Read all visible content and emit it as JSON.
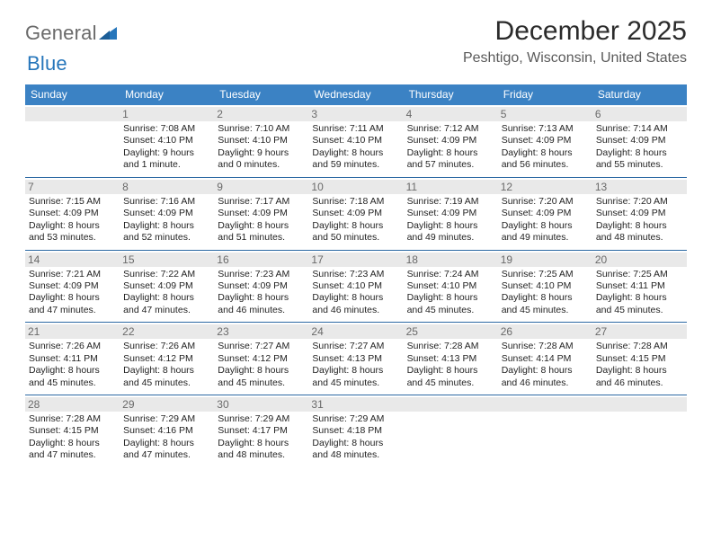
{
  "brand": {
    "general": "General",
    "blue": "Blue"
  },
  "title": "December 2025",
  "location": "Peshtigo, Wisconsin, United States",
  "colors": {
    "header_bg": "#3b82c4",
    "header_text": "#ffffff",
    "row_border": "#2c69a3",
    "daynum_bg": "#e9e9e9",
    "daynum_text": "#6a6a6a",
    "body_text": "#232323",
    "logo_gray": "#6a6a6a",
    "logo_blue": "#2676bb"
  },
  "dow": [
    "Sunday",
    "Monday",
    "Tuesday",
    "Wednesday",
    "Thursday",
    "Friday",
    "Saturday"
  ],
  "grid_cols": 7,
  "start_offset": 1,
  "days": [
    {
      "n": 1,
      "sunrise": "7:08 AM",
      "sunset": "4:10 PM",
      "daylight": "9 hours and 1 minute."
    },
    {
      "n": 2,
      "sunrise": "7:10 AM",
      "sunset": "4:10 PM",
      "daylight": "9 hours and 0 minutes."
    },
    {
      "n": 3,
      "sunrise": "7:11 AM",
      "sunset": "4:10 PM",
      "daylight": "8 hours and 59 minutes."
    },
    {
      "n": 4,
      "sunrise": "7:12 AM",
      "sunset": "4:09 PM",
      "daylight": "8 hours and 57 minutes."
    },
    {
      "n": 5,
      "sunrise": "7:13 AM",
      "sunset": "4:09 PM",
      "daylight": "8 hours and 56 minutes."
    },
    {
      "n": 6,
      "sunrise": "7:14 AM",
      "sunset": "4:09 PM",
      "daylight": "8 hours and 55 minutes."
    },
    {
      "n": 7,
      "sunrise": "7:15 AM",
      "sunset": "4:09 PM",
      "daylight": "8 hours and 53 minutes."
    },
    {
      "n": 8,
      "sunrise": "7:16 AM",
      "sunset": "4:09 PM",
      "daylight": "8 hours and 52 minutes."
    },
    {
      "n": 9,
      "sunrise": "7:17 AM",
      "sunset": "4:09 PM",
      "daylight": "8 hours and 51 minutes."
    },
    {
      "n": 10,
      "sunrise": "7:18 AM",
      "sunset": "4:09 PM",
      "daylight": "8 hours and 50 minutes."
    },
    {
      "n": 11,
      "sunrise": "7:19 AM",
      "sunset": "4:09 PM",
      "daylight": "8 hours and 49 minutes."
    },
    {
      "n": 12,
      "sunrise": "7:20 AM",
      "sunset": "4:09 PM",
      "daylight": "8 hours and 49 minutes."
    },
    {
      "n": 13,
      "sunrise": "7:20 AM",
      "sunset": "4:09 PM",
      "daylight": "8 hours and 48 minutes."
    },
    {
      "n": 14,
      "sunrise": "7:21 AM",
      "sunset": "4:09 PM",
      "daylight": "8 hours and 47 minutes."
    },
    {
      "n": 15,
      "sunrise": "7:22 AM",
      "sunset": "4:09 PM",
      "daylight": "8 hours and 47 minutes."
    },
    {
      "n": 16,
      "sunrise": "7:23 AM",
      "sunset": "4:09 PM",
      "daylight": "8 hours and 46 minutes."
    },
    {
      "n": 17,
      "sunrise": "7:23 AM",
      "sunset": "4:10 PM",
      "daylight": "8 hours and 46 minutes."
    },
    {
      "n": 18,
      "sunrise": "7:24 AM",
      "sunset": "4:10 PM",
      "daylight": "8 hours and 45 minutes."
    },
    {
      "n": 19,
      "sunrise": "7:25 AM",
      "sunset": "4:10 PM",
      "daylight": "8 hours and 45 minutes."
    },
    {
      "n": 20,
      "sunrise": "7:25 AM",
      "sunset": "4:11 PM",
      "daylight": "8 hours and 45 minutes."
    },
    {
      "n": 21,
      "sunrise": "7:26 AM",
      "sunset": "4:11 PM",
      "daylight": "8 hours and 45 minutes."
    },
    {
      "n": 22,
      "sunrise": "7:26 AM",
      "sunset": "4:12 PM",
      "daylight": "8 hours and 45 minutes."
    },
    {
      "n": 23,
      "sunrise": "7:27 AM",
      "sunset": "4:12 PM",
      "daylight": "8 hours and 45 minutes."
    },
    {
      "n": 24,
      "sunrise": "7:27 AM",
      "sunset": "4:13 PM",
      "daylight": "8 hours and 45 minutes."
    },
    {
      "n": 25,
      "sunrise": "7:28 AM",
      "sunset": "4:13 PM",
      "daylight": "8 hours and 45 minutes."
    },
    {
      "n": 26,
      "sunrise": "7:28 AM",
      "sunset": "4:14 PM",
      "daylight": "8 hours and 46 minutes."
    },
    {
      "n": 27,
      "sunrise": "7:28 AM",
      "sunset": "4:15 PM",
      "daylight": "8 hours and 46 minutes."
    },
    {
      "n": 28,
      "sunrise": "7:28 AM",
      "sunset": "4:15 PM",
      "daylight": "8 hours and 47 minutes."
    },
    {
      "n": 29,
      "sunrise": "7:29 AM",
      "sunset": "4:16 PM",
      "daylight": "8 hours and 47 minutes."
    },
    {
      "n": 30,
      "sunrise": "7:29 AM",
      "sunset": "4:17 PM",
      "daylight": "8 hours and 48 minutes."
    },
    {
      "n": 31,
      "sunrise": "7:29 AM",
      "sunset": "4:18 PM",
      "daylight": "8 hours and 48 minutes."
    }
  ],
  "labels": {
    "sunrise": "Sunrise:",
    "sunset": "Sunset:",
    "daylight": "Daylight:"
  }
}
